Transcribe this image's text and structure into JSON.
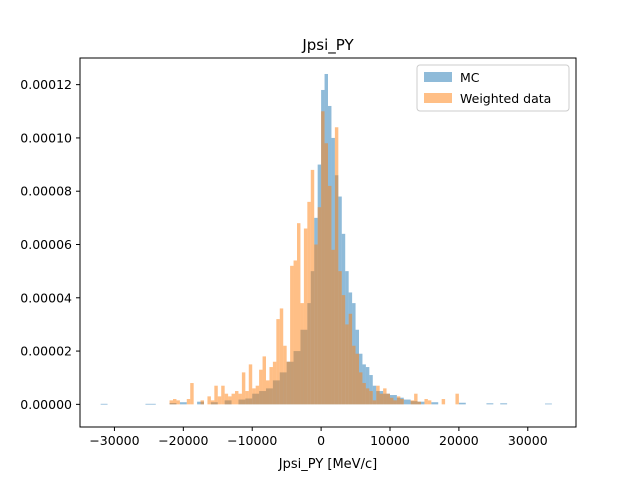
{
  "chart_data": {
    "type": "bar",
    "title": "Jpsi_PY",
    "xlabel": "Jpsi_PY [MeV/c]",
    "ylabel": "",
    "xlim": [
      -35000,
      37000
    ],
    "ylim": [
      -8.5e-06,
      0.00013
    ],
    "xticks": [
      -30000,
      -20000,
      -10000,
      0,
      10000,
      20000,
      30000
    ],
    "xtick_labels": [
      "−30000",
      "−20000",
      "−10000",
      "0",
      "10000",
      "20000",
      "30000"
    ],
    "yticks": [
      0,
      2e-05,
      4e-05,
      6e-05,
      8e-05,
      0.0001,
      0.00012
    ],
    "ytick_labels": [
      "0.00000",
      "0.00002",
      "0.00004",
      "0.00006",
      "0.00008",
      "0.00010",
      "0.00012"
    ],
    "grid": false,
    "legend_position": "top-right",
    "series": [
      {
        "name": "MC",
        "color": "#1f77b4",
        "alpha": 0.5,
        "bins": [
          [
            -32000,
            -31000,
            2e-07
          ],
          [
            -25500,
            -24000,
            2e-07
          ],
          [
            -22000,
            -21000,
            5e-07
          ],
          [
            -20500,
            -19500,
            8e-07
          ],
          [
            -18000,
            -17000,
            1e-06
          ],
          [
            -16000,
            -15000,
            8e-07
          ],
          [
            -14000,
            -13000,
            1.5e-06
          ],
          [
            -12000,
            -11000,
            1.8e-06
          ],
          [
            -11000,
            -10000,
            2.2e-06
          ],
          [
            -10000,
            -9000,
            4e-06
          ],
          [
            -9000,
            -8000,
            5e-06
          ],
          [
            -8000,
            -7000,
            6e-06
          ],
          [
            -7000,
            -6000,
            9e-06
          ],
          [
            -6000,
            -5000,
            1.2e-05
          ],
          [
            -5000,
            -4000,
            1.6e-05
          ],
          [
            -4000,
            -3000,
            2e-05
          ],
          [
            -3000,
            -2000,
            2.8e-05
          ],
          [
            -2000,
            -1500,
            3.8e-05
          ],
          [
            -1500,
            -1000,
            5e-05
          ],
          [
            -1000,
            -500,
            7e-05
          ],
          [
            -500,
            0,
            9e-05
          ],
          [
            0,
            500,
            0.000118
          ],
          [
            500,
            1000,
            0.000124
          ],
          [
            1000,
            1500,
            0.000112
          ],
          [
            1500,
            2000,
            0.0001
          ],
          [
            2000,
            2500,
            8.6e-05
          ],
          [
            2500,
            3000,
            7.8e-05
          ],
          [
            3000,
            3500,
            6.4e-05
          ],
          [
            3500,
            4000,
            5e-05
          ],
          [
            4000,
            4500,
            4.2e-05
          ],
          [
            4500,
            5000,
            3.8e-05
          ],
          [
            5000,
            5500,
            2.8e-05
          ],
          [
            5500,
            6000,
            1.9e-05
          ],
          [
            6000,
            6500,
            1.5e-05
          ],
          [
            6500,
            7000,
            1.4e-05
          ],
          [
            7000,
            7500,
            1.1e-05
          ],
          [
            7500,
            8000,
            7e-06
          ],
          [
            8000,
            9000,
            5e-06
          ],
          [
            9000,
            10000,
            4e-06
          ],
          [
            10000,
            11000,
            3.5e-06
          ],
          [
            11000,
            12000,
            2.5e-06
          ],
          [
            12000,
            13000,
            1.8e-06
          ],
          [
            13000,
            14000,
            1.2e-06
          ],
          [
            14000,
            15000,
            1e-06
          ],
          [
            16000,
            17000,
            8e-07
          ],
          [
            20000,
            21000,
            6e-07
          ],
          [
            24000,
            25000,
            4e-07
          ],
          [
            26000,
            27000,
            4e-07
          ],
          [
            32500,
            33500,
            3e-07
          ]
        ]
      },
      {
        "name": "Weighted data",
        "color": "#ff7f0e",
        "alpha": 0.5,
        "bins": [
          [
            -22000,
            -21500,
            1.5e-06
          ],
          [
            -21500,
            -21000,
            2e-06
          ],
          [
            -21000,
            -20500,
            1.5e-06
          ],
          [
            -19500,
            -19000,
            2e-06
          ],
          [
            -19000,
            -18500,
            8e-06
          ],
          [
            -17500,
            -17000,
            1.5e-06
          ],
          [
            -16500,
            -16000,
            3e-06
          ],
          [
            -16000,
            -15500,
            1.5e-06
          ],
          [
            -15500,
            -15000,
            7e-06
          ],
          [
            -15000,
            -14500,
            3e-06
          ],
          [
            -14500,
            -14000,
            7e-06
          ],
          [
            -14000,
            -13500,
            4e-06
          ],
          [
            -13500,
            -13000,
            3e-06
          ],
          [
            -13000,
            -12500,
            4e-06
          ],
          [
            -12500,
            -12000,
            5e-06
          ],
          [
            -12000,
            -11500,
            4e-06
          ],
          [
            -11500,
            -11000,
            1.2e-05
          ],
          [
            -11000,
            -10500,
            5e-06
          ],
          [
            -10500,
            -10000,
            1.5e-05
          ],
          [
            -10000,
            -9500,
            6e-06
          ],
          [
            -9500,
            -9000,
            7e-06
          ],
          [
            -9000,
            -8500,
            1.3e-05
          ],
          [
            -8500,
            -8000,
            1.8e-05
          ],
          [
            -8000,
            -7500,
            9e-06
          ],
          [
            -7500,
            -7000,
            1.4e-05
          ],
          [
            -7000,
            -6500,
            1.6e-05
          ],
          [
            -6500,
            -6000,
            3.2e-05
          ],
          [
            -6000,
            -5500,
            3.6e-05
          ],
          [
            -5500,
            -5000,
            2.2e-05
          ],
          [
            -5000,
            -4500,
            1.6e-05
          ],
          [
            -4500,
            -4000,
            5.2e-05
          ],
          [
            -4000,
            -3500,
            5.4e-05
          ],
          [
            -3500,
            -3000,
            6.8e-05
          ],
          [
            -3000,
            -2500,
            3.8e-05
          ],
          [
            -2500,
            -2000,
            6.6e-05
          ],
          [
            -2000,
            -1500,
            7.6e-05
          ],
          [
            -1500,
            -1000,
            8.8e-05
          ],
          [
            -1000,
            -500,
            6e-05
          ],
          [
            -500,
            0,
            7.4e-05
          ],
          [
            0,
            500,
            0.00011
          ],
          [
            500,
            1000,
            9.8e-05
          ],
          [
            1000,
            1500,
            8.2e-05
          ],
          [
            1500,
            2000,
            5.8e-05
          ],
          [
            2000,
            2500,
            0.000104
          ],
          [
            2500,
            3000,
            5e-05
          ],
          [
            3000,
            3500,
            4.1e-05
          ],
          [
            3500,
            4000,
            3e-05
          ],
          [
            4000,
            4500,
            3.4e-05
          ],
          [
            4500,
            5000,
            2.2e-05
          ],
          [
            5000,
            5500,
            1.9e-05
          ],
          [
            5500,
            6000,
            1.2e-05
          ],
          [
            6000,
            6500,
            8e-06
          ],
          [
            6500,
            7000,
            6e-06
          ],
          [
            7000,
            7500,
            5e-06
          ],
          [
            7500,
            8000,
            1.5e-06
          ],
          [
            8000,
            8500,
            7e-06
          ],
          [
            8500,
            9000,
            4e-06
          ],
          [
            9000,
            9500,
            6e-06
          ],
          [
            9500,
            10000,
            4e-06
          ],
          [
            10000,
            10500,
            2.5e-06
          ],
          [
            10500,
            11000,
            1.5e-06
          ],
          [
            11000,
            11500,
            3e-06
          ],
          [
            11500,
            12000,
            2e-06
          ],
          [
            13000,
            13500,
            1.5e-06
          ],
          [
            13500,
            14000,
            4e-06
          ],
          [
            14000,
            14500,
            1e-06
          ],
          [
            15000,
            15500,
            2e-06
          ],
          [
            15500,
            16000,
            1.5e-06
          ],
          [
            17500,
            18000,
            2e-06
          ],
          [
            19500,
            20000,
            4e-06
          ]
        ]
      }
    ]
  }
}
